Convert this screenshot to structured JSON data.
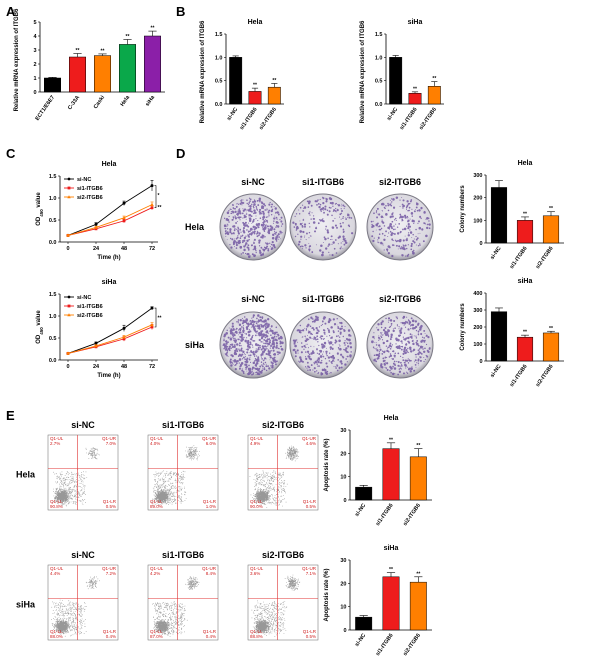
{
  "figure": {
    "labels": [
      "A",
      "B",
      "C",
      "D",
      "E"
    ]
  },
  "colors": {
    "black": "#000000",
    "red": "#ee1c1c",
    "orange": "#ff7f00",
    "green": "#0aa84a",
    "blue": "#1f3ea8",
    "purple": "#8b1fa8",
    "plate_purple": "#6b4f9e",
    "flow_line": "#e03030"
  },
  "chart_data": [
    {
      "id": "A",
      "type": "bar",
      "title": "",
      "categories": [
        "ECT1/E6E7",
        "C-33A",
        "Caski",
        "Hela",
        "siHa"
      ],
      "values": [
        1.0,
        2.5,
        2.6,
        3.4,
        4.0
      ],
      "errors": [
        0.05,
        0.25,
        0.12,
        0.35,
        0.35
      ],
      "sig": [
        "",
        "**",
        "**",
        "**",
        "**"
      ],
      "colors": [
        "#000000",
        "#ee1c1c",
        "#ff7f00",
        "#0aa84a",
        "#8b1fa8"
      ],
      "xlabel": "",
      "ylabel": "Relative mRNA expression of ITGB6",
      "ylim": [
        0,
        5
      ],
      "yticks": [
        0,
        1,
        2,
        3,
        4,
        5
      ]
    },
    {
      "id": "B1",
      "type": "bar",
      "title": "Hela",
      "categories": [
        "si-NC",
        "si1-ITGB6",
        "si2-ITGB6"
      ],
      "values": [
        1.0,
        0.27,
        0.36
      ],
      "errors": [
        0.03,
        0.07,
        0.08
      ],
      "sig": [
        "",
        "**",
        "**"
      ],
      "colors": [
        "#000000",
        "#ee1c1c",
        "#ff7f00"
      ],
      "ylabel": "Relative mRNA expression of ITGB6",
      "ylim": [
        0,
        1.5
      ],
      "yticks": [
        0.0,
        0.5,
        1.0,
        1.5
      ]
    },
    {
      "id": "B2",
      "type": "bar",
      "title": "siHa",
      "categories": [
        "si-NC",
        "si1-ITGB6",
        "si2-ITGB6"
      ],
      "values": [
        1.0,
        0.23,
        0.38
      ],
      "errors": [
        0.04,
        0.03,
        0.1
      ],
      "sig": [
        "",
        "**",
        "**"
      ],
      "colors": [
        "#000000",
        "#ee1c1c",
        "#ff7f00"
      ],
      "ylabel": "Relative mRNA expression of ITGB6",
      "ylim": [
        0,
        1.5
      ],
      "yticks": [
        0.0,
        0.5,
        1.0,
        1.5
      ]
    },
    {
      "id": "C1",
      "type": "line",
      "title": "Hela",
      "x": [
        0,
        24,
        48,
        72
      ],
      "xlabel": "Time (h)",
      "ylabel_main": "OD",
      "ylabel_sub": "450",
      "ylabel_end": " value",
      "ylim": [
        0,
        1.5
      ],
      "yticks": [
        0.0,
        0.5,
        1.0,
        1.5
      ],
      "series": [
        {
          "name": "si-NC",
          "color": "#000000",
          "marker": "circle",
          "values": [
            0.15,
            0.4,
            0.88,
            1.28
          ],
          "errors": [
            0.02,
            0.04,
            0.05,
            0.12
          ]
        },
        {
          "name": "si1-ITGB6",
          "color": "#ee1c1c",
          "marker": "square",
          "values": [
            0.15,
            0.3,
            0.48,
            0.78
          ],
          "errors": [
            0.02,
            0.03,
            0.04,
            0.05
          ]
        },
        {
          "name": "si2-ITGB6",
          "color": "#ff7f00",
          "marker": "triangle",
          "values": [
            0.15,
            0.33,
            0.55,
            0.85
          ],
          "errors": [
            0.02,
            0.03,
            0.04,
            0.06
          ]
        }
      ],
      "sig": [
        "*",
        "**"
      ]
    },
    {
      "id": "C2",
      "type": "line",
      "title": "siHa",
      "x": [
        0,
        24,
        48,
        72
      ],
      "xlabel": "Time (h)",
      "ylabel_main": "OD",
      "ylabel_sub": "450",
      "ylabel_end": " value",
      "ylim": [
        0,
        1.5
      ],
      "yticks": [
        0.0,
        0.5,
        1.0,
        1.5
      ],
      "series": [
        {
          "name": "si-NC",
          "color": "#000000",
          "marker": "circle",
          "values": [
            0.15,
            0.38,
            0.72,
            1.18
          ],
          "errors": [
            0.02,
            0.03,
            0.07,
            0.03
          ]
        },
        {
          "name": "si1-ITGB6",
          "color": "#ee1c1c",
          "marker": "square",
          "values": [
            0.15,
            0.3,
            0.48,
            0.75
          ],
          "errors": [
            0.02,
            0.03,
            0.05,
            0.06
          ]
        },
        {
          "name": "si2-ITGB6",
          "color": "#ff7f00",
          "marker": "triangle",
          "values": [
            0.15,
            0.32,
            0.52,
            0.8
          ],
          "errors": [
            0.02,
            0.03,
            0.04,
            0.05
          ]
        }
      ],
      "sig": [
        "**"
      ]
    },
    {
      "id": "D1",
      "type": "bar",
      "title": "Hela",
      "categories": [
        "si-NC",
        "si1-ITGB6",
        "si2-ITGB6"
      ],
      "values": [
        245,
        100,
        120
      ],
      "errors": [
        30,
        15,
        18
      ],
      "sig": [
        "",
        "**",
        "**"
      ],
      "colors": [
        "#000000",
        "#ee1c1c",
        "#ff7f00"
      ],
      "ylabel": "Colony numbers",
      "ylim": [
        0,
        300
      ],
      "yticks": [
        0,
        100,
        200,
        300
      ]
    },
    {
      "id": "D2",
      "type": "bar",
      "title": "siHa",
      "categories": [
        "si-NC",
        "si1-ITGB6",
        "si2-ITGB6"
      ],
      "values": [
        290,
        140,
        165
      ],
      "errors": [
        22,
        12,
        10
      ],
      "sig": [
        "",
        "**",
        "**"
      ],
      "colors": [
        "#000000",
        "#ee1c1c",
        "#ff7f00"
      ],
      "ylabel": "Colony numbers",
      "ylim": [
        0,
        400
      ],
      "yticks": [
        0,
        100,
        200,
        300,
        400
      ]
    },
    {
      "id": "E1",
      "type": "bar",
      "title": "Hela",
      "categories": [
        "si-NC",
        "si1-ITGB6",
        "si2-ITGB6"
      ],
      "values": [
        5.5,
        22.0,
        18.5
      ],
      "errors": [
        0.8,
        2.5,
        3.5
      ],
      "sig": [
        "",
        "**",
        "**"
      ],
      "colors": [
        "#000000",
        "#ee1c1c",
        "#ff7f00"
      ],
      "ylabel": "Apoptosis rate (%)",
      "ylim": [
        0,
        30
      ],
      "yticks": [
        0,
        10,
        20,
        30
      ]
    },
    {
      "id": "E2",
      "type": "bar",
      "title": "siHa",
      "categories": [
        "si-NC",
        "si1-ITGB6",
        "si2-ITGB6"
      ],
      "values": [
        5.5,
        22.8,
        20.5
      ],
      "errors": [
        0.7,
        1.8,
        2.3
      ],
      "sig": [
        "",
        "**",
        "**"
      ],
      "colors": [
        "#000000",
        "#ee1c1c",
        "#ff7f00"
      ],
      "ylabel": "Apoptosis rate (%)",
      "ylim": [
        0,
        30
      ],
      "yticks": [
        0,
        10,
        20,
        30
      ]
    }
  ],
  "colony_panel": {
    "columns": [
      "si-NC",
      "si1-ITGB6",
      "si2-ITGB6"
    ],
    "rows": [
      "Hela",
      "siHa"
    ],
    "densities": [
      [
        230,
        110,
        130
      ],
      [
        300,
        160,
        180
      ]
    ]
  },
  "flow_panel": {
    "columns": [
      "si-NC",
      "si1-ITGB6",
      "si2-ITGB6"
    ],
    "rows": [
      "Hela",
      "siHa"
    ],
    "quadrant_labels": {
      "ul": "Q1-UL",
      "ur": "Q1-UR",
      "ll": "Q1-LL",
      "lr": "Q1-LR"
    },
    "cells": [
      [
        {
          "ul": "2.7%",
          "ur": "7.0%",
          "ll": "90.8%",
          "lr": "0.5%"
        },
        {
          "ul": "4.0%",
          "ur": "6.0%",
          "ll": "89.0%",
          "lr": "1.0%"
        },
        {
          "ul": "4.9%",
          "ur": "4.6%",
          "ll": "90.0%",
          "lr": "0.5%"
        }
      ],
      [
        {
          "ul": "4.4%",
          "ur": "7.2%",
          "ll": "88.0%",
          "lr": "0.4%"
        },
        {
          "ul": "4.2%",
          "ur": "8.4%",
          "ll": "87.0%",
          "lr": "0.4%"
        },
        {
          "ul": "3.6%",
          "ur": "7.1%",
          "ll": "88.8%",
          "lr": "0.5%"
        }
      ]
    ]
  }
}
